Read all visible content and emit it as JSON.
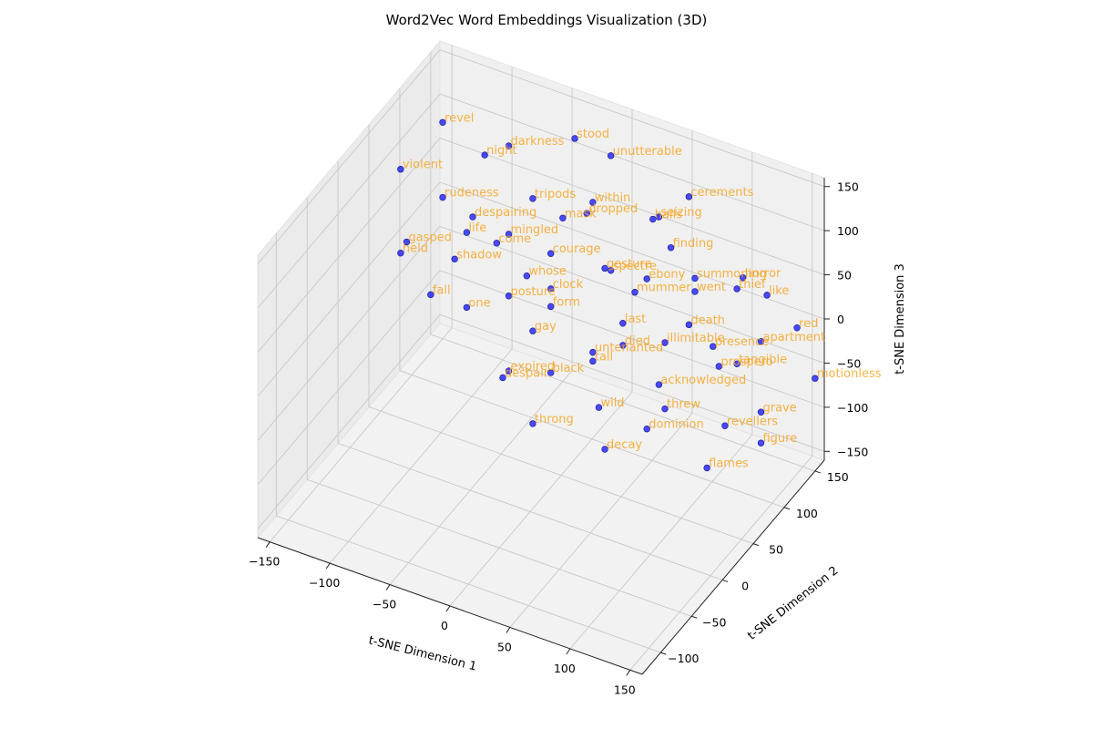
{
  "chart_data": {
    "type": "scatter",
    "projection": "3d",
    "title": "Word2Vec Word Embeddings Visualization (3D)",
    "xlabel": "t-SNE Dimension 1",
    "ylabel": "t-SNE Dimension 2",
    "zlabel": "t-SNE Dimension 3",
    "xlim": [
      -160,
      160
    ],
    "ylim": [
      -130,
      165
    ],
    "zlim": [
      -160,
      160
    ],
    "xticks": [
      -150,
      -100,
      -50,
      0,
      50,
      100,
      150
    ],
    "yticks": [
      -100,
      -50,
      0,
      50,
      100,
      150
    ],
    "zticks": [
      -150,
      -100,
      -50,
      0,
      50,
      100,
      150
    ],
    "xtick_labels": [
      "−150",
      "−100",
      "−50",
      "0",
      "50",
      "100",
      "150"
    ],
    "ytick_labels": [
      "−100",
      "−50",
      "0",
      "50",
      "100",
      "150"
    ],
    "ztick_labels": [
      "−150",
      "−100",
      "−50",
      "0",
      "50",
      "100",
      "150"
    ],
    "grid": true,
    "marker_color": "#0000ff",
    "label_color": "#f5a623",
    "points": [
      {
        "word": "stood",
        "x": -40,
        "y": 150,
        "z": 120
      },
      {
        "word": "unutterable",
        "x": -10,
        "y": 150,
        "z": 115
      },
      {
        "word": "cerements",
        "x": 55,
        "y": 150,
        "z": 100
      },
      {
        "word": "revel",
        "x": -150,
        "y": 150,
        "z": 85
      },
      {
        "word": "darkness",
        "x": -95,
        "y": 150,
        "z": 85
      },
      {
        "word": "night",
        "x": -115,
        "y": 150,
        "z": 65
      },
      {
        "word": "seizing",
        "x": 30,
        "y": 150,
        "z": 65
      },
      {
        "word": "halls",
        "x": 25,
        "y": 150,
        "z": 60
      },
      {
        "word": "within",
        "x": -25,
        "y": 150,
        "z": 55
      },
      {
        "word": "dropped",
        "x": -30,
        "y": 150,
        "z": 40
      },
      {
        "word": "tripods",
        "x": -75,
        "y": 150,
        "z": 35
      },
      {
        "word": "mask",
        "x": -50,
        "y": 150,
        "z": 25
      },
      {
        "word": "finding",
        "x": 40,
        "y": 150,
        "z": 35
      },
      {
        "word": "horror",
        "x": 100,
        "y": 150,
        "z": 30
      },
      {
        "word": "like",
        "x": 120,
        "y": 150,
        "z": 20
      },
      {
        "word": "thief",
        "x": 95,
        "y": 150,
        "z": 15
      },
      {
        "word": "summoning",
        "x": 60,
        "y": 150,
        "z": 10
      },
      {
        "word": "red",
        "x": 145,
        "y": 150,
        "z": -5
      },
      {
        "word": "violent",
        "x": -185,
        "y": 150,
        "z": 15
      },
      {
        "word": "rudeness",
        "x": -150,
        "y": 150,
        "z": 0
      },
      {
        "word": "despairing",
        "x": -125,
        "y": 150,
        "z": -10
      },
      {
        "word": "mingled",
        "x": -95,
        "y": 150,
        "z": -15
      },
      {
        "word": "courage",
        "x": -60,
        "y": 150,
        "z": -20
      },
      {
        "word": "gesture",
        "x": -15,
        "y": 150,
        "z": -15
      },
      {
        "word": "spectre",
        "x": -10,
        "y": 150,
        "z": -15
      },
      {
        "word": "ebony",
        "x": 20,
        "y": 150,
        "z": -10
      },
      {
        "word": "went",
        "x": 60,
        "y": 150,
        "z": -5
      },
      {
        "word": "life",
        "x": -130,
        "y": 150,
        "z": -30
      },
      {
        "word": "come",
        "x": -105,
        "y": 150,
        "z": -30
      },
      {
        "word": "mummer",
        "x": 10,
        "y": 150,
        "z": -30
      },
      {
        "word": "apartment",
        "x": 115,
        "y": 150,
        "z": -35
      },
      {
        "word": "death",
        "x": 55,
        "y": 150,
        "z": -45
      },
      {
        "word": "motionless",
        "x": 160,
        "y": 150,
        "z": -55
      },
      {
        "word": "gasped",
        "x": -180,
        "y": 150,
        "z": -65
      },
      {
        "word": "held",
        "x": -185,
        "y": 150,
        "z": -80
      },
      {
        "word": "shadow",
        "x": -140,
        "y": 150,
        "z": -65
      },
      {
        "word": "whose",
        "x": -80,
        "y": 150,
        "z": -55
      },
      {
        "word": "clock",
        "x": -60,
        "y": 150,
        "z": -60
      },
      {
        "word": "last",
        "x": 0,
        "y": 150,
        "z": -70
      },
      {
        "word": "presence",
        "x": 75,
        "y": 150,
        "z": -60
      },
      {
        "word": "tangible",
        "x": 95,
        "y": 150,
        "z": -70
      },
      {
        "word": "illimitable",
        "x": 35,
        "y": 150,
        "z": -75
      },
      {
        "word": "prospero",
        "x": 80,
        "y": 150,
        "z": -80
      },
      {
        "word": "form",
        "x": -60,
        "y": 150,
        "z": -80
      },
      {
        "word": "posture",
        "x": -95,
        "y": 150,
        "z": -85
      },
      {
        "word": "died",
        "x": 0,
        "y": 150,
        "z": -95
      },
      {
        "word": "fall",
        "x": -160,
        "y": 150,
        "z": -115
      },
      {
        "word": "one",
        "x": -130,
        "y": 150,
        "z": -115
      },
      {
        "word": "gay",
        "x": -75,
        "y": 150,
        "z": -115
      },
      {
        "word": "untenanted",
        "x": -25,
        "y": 150,
        "z": -115
      },
      {
        "word": "tall",
        "x": -25,
        "y": 150,
        "z": -125
      },
      {
        "word": "acknowledged",
        "x": 30,
        "y": 150,
        "z": -125
      },
      {
        "word": "grave",
        "x": 115,
        "y": 150,
        "z": -115
      },
      {
        "word": "threw",
        "x": 35,
        "y": 150,
        "z": -150
      },
      {
        "word": "revellers",
        "x": 85,
        "y": 150,
        "z": -145
      },
      {
        "word": "figure",
        "x": 115,
        "y": 150,
        "z": -150
      },
      {
        "word": "black",
        "x": -60,
        "y": 150,
        "z": -155
      },
      {
        "word": "expired",
        "x": -95,
        "y": 150,
        "z": -170
      },
      {
        "word": "despair",
        "x": -100,
        "y": 150,
        "z": -180
      },
      {
        "word": "wild",
        "x": -20,
        "y": 150,
        "z": -175
      },
      {
        "word": "dominion",
        "x": 20,
        "y": 150,
        "z": -180
      },
      {
        "word": "flames",
        "x": 70,
        "y": 150,
        "z": -200
      },
      {
        "word": "throng",
        "x": -75,
        "y": 150,
        "z": -220
      },
      {
        "word": "decay",
        "x": -15,
        "y": 150,
        "z": -220
      }
    ]
  }
}
